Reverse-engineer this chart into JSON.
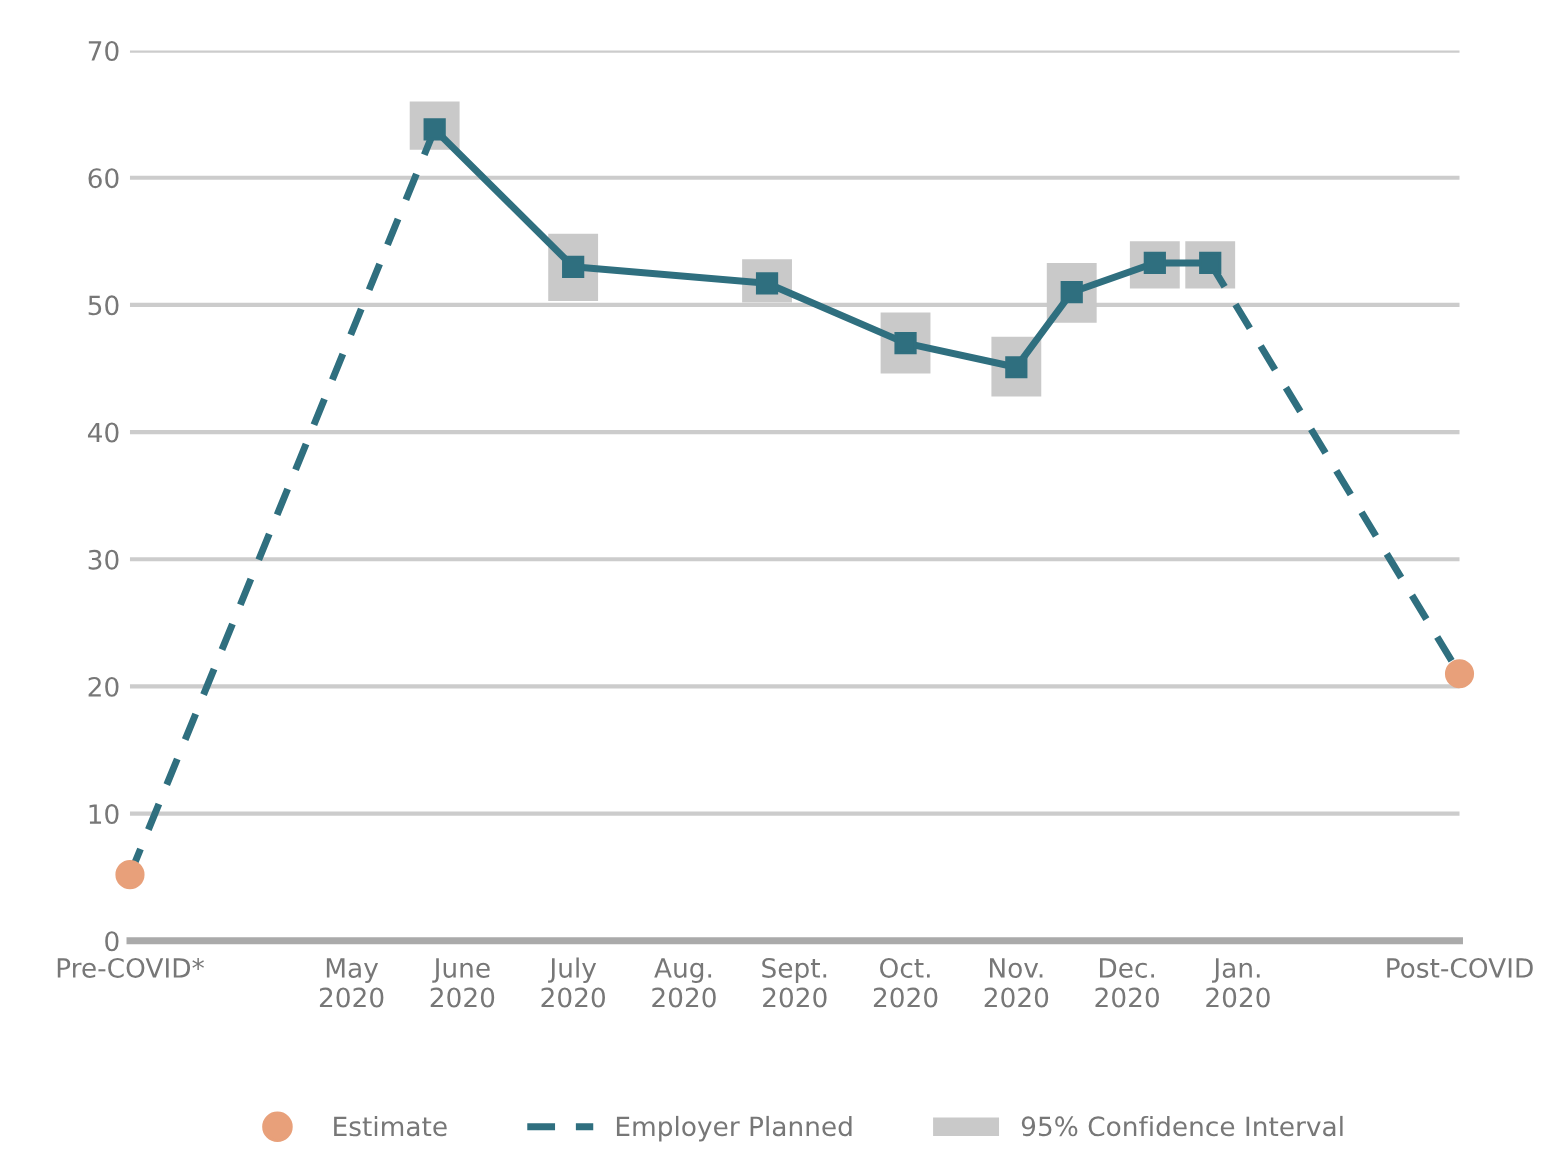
{
  "chart_data": {
    "type": "line",
    "categories": [
      "Pre-COVID*",
      null,
      null,
      null,
      null,
      null,
      null,
      null,
      "May\n2020",
      null,
      null,
      null,
      "June\n2020",
      null,
      null,
      null,
      "July\n2020",
      null,
      null,
      null,
      "Aug.\n2020",
      null,
      null,
      null,
      "Sept.\n2020",
      null,
      null,
      null,
      "Oct.\n2020",
      null,
      null,
      null,
      "Nov.\n2020",
      null,
      null,
      null,
      "Dec.\n2020",
      null,
      null,
      null,
      "Jan.\n2020",
      null,
      null,
      null,
      null,
      null,
      null,
      null,
      "Post-COVID"
    ],
    "ylim": [
      0,
      70
    ],
    "yticks": [
      0,
      10,
      20,
      30,
      40,
      50,
      60,
      70
    ],
    "grid": "y",
    "legend": "bottom",
    "series": [
      {
        "name": "Estimate",
        "type": "scatter",
        "marker": "circle",
        "color": "#e8a07a",
        "values": [
          5.2,
          null,
          null,
          null,
          null,
          null,
          null,
          null,
          null,
          null,
          null,
          null,
          null,
          null,
          null,
          null,
          null,
          null,
          null,
          null,
          null,
          null,
          null,
          null,
          null,
          null,
          null,
          null,
          null,
          null,
          null,
          null,
          null,
          null,
          null,
          null,
          null,
          null,
          null,
          null,
          null,
          null,
          null,
          null,
          null,
          null,
          null,
          null,
          21
        ]
      },
      {
        "name": "Employer Planned",
        "line_style": "dashed",
        "color": "#2f6f7f",
        "values": [
          5.2,
          null,
          null,
          null,
          null,
          null,
          null,
          null,
          null,
          null,
          null,
          63.8,
          null,
          null,
          null,
          null,
          null,
          null,
          null,
          null,
          null,
          null,
          null,
          null,
          null,
          null,
          null,
          null,
          null,
          null,
          null,
          null,
          null,
          null,
          null,
          null,
          null,
          null,
          null,
          null,
          null,
          null,
          null,
          null,
          null,
          null,
          null,
          null,
          null
        ]
      },
      {
        "line_style": "dashed",
        "color": "#2f6f7f",
        "values": [
          null,
          null,
          null,
          null,
          null,
          null,
          null,
          null,
          null,
          null,
          null,
          null,
          null,
          null,
          null,
          null,
          null,
          null,
          null,
          null,
          null,
          null,
          null,
          null,
          null,
          null,
          null,
          null,
          null,
          null,
          null,
          null,
          null,
          null,
          null,
          null,
          null,
          null,
          null,
          53.3,
          null,
          null,
          null,
          null,
          null,
          null,
          null,
          null,
          21
        ]
      },
      {
        "line_style": "solid",
        "marker": "square",
        "color": "#2f6f7f",
        "values": [
          null,
          null,
          null,
          null,
          null,
          null,
          null,
          null,
          null,
          null,
          null,
          63.8,
          null,
          null,
          null,
          null,
          53.0,
          null,
          null,
          null,
          null,
          null,
          null,
          51.7,
          null,
          null,
          null,
          null,
          47.0,
          null,
          null,
          null,
          45.1,
          null,
          51.0,
          null,
          null,
          53.3,
          null,
          53.3,
          null,
          null,
          null,
          null,
          null,
          null,
          null,
          null,
          null
        ]
      },
      {
        "name": "95% Confidence Interval",
        "type": "bar",
        "color": "#c9c9c9",
        "base": [
          null,
          null,
          null,
          null,
          null,
          null,
          null,
          null,
          null,
          null,
          null,
          62.2,
          null,
          null,
          null,
          null,
          50.3,
          null,
          null,
          null,
          null,
          null,
          null,
          50.2,
          null,
          null,
          null,
          null,
          44.6,
          null,
          null,
          null,
          42.8,
          null,
          48.6,
          null,
          null,
          51.3,
          null,
          51.3,
          null,
          null,
          null,
          null,
          null,
          null,
          null,
          null,
          null
        ],
        "values": [
          null,
          null,
          null,
          null,
          null,
          null,
          null,
          null,
          null,
          null,
          null,
          3.8,
          null,
          null,
          null,
          null,
          5.3,
          null,
          null,
          null,
          null,
          null,
          null,
          3.4,
          null,
          null,
          null,
          null,
          4.8,
          null,
          null,
          null,
          4.7,
          null,
          4.7,
          null,
          null,
          3.7,
          null,
          3.7,
          null,
          null,
          null,
          null,
          null,
          null,
          null,
          null,
          null
        ]
      }
    ]
  }
}
